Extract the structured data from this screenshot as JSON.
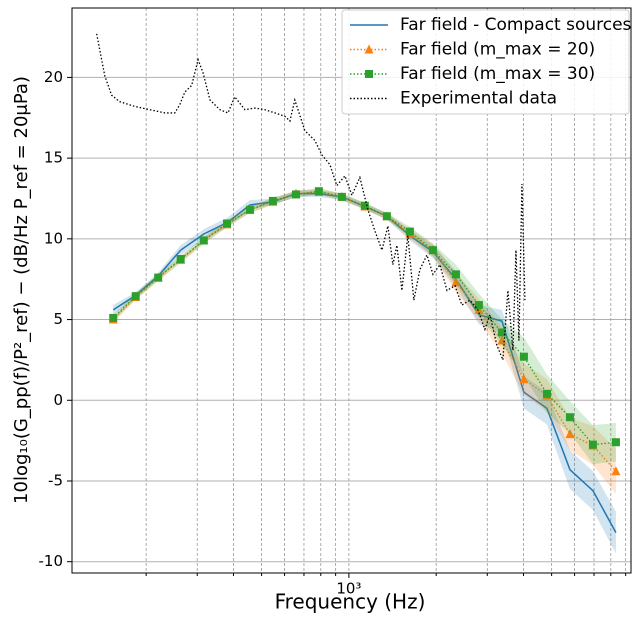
{
  "chart_data": {
    "type": "line",
    "xlabel": "Frequency (Hz)",
    "ylabel": "10log₁₀(G_pp(f)/P²_ref) − (dB/Hz     P_ref = 20μPa)",
    "xscale": "log",
    "xlim": [
      111,
      9390
    ],
    "ylim": [
      -10.7,
      24.3
    ],
    "xticks": [
      {
        "value": 1000,
        "label": "10³"
      }
    ],
    "x_minor_ticks": [
      200,
      300,
      400,
      500,
      600,
      700,
      800,
      900,
      2000,
      3000,
      4000,
      5000,
      6000,
      7000,
      8000,
      9000
    ],
    "yticks": [
      -10,
      -5,
      0,
      5,
      10,
      15,
      20
    ],
    "grid": true,
    "legend": "upper right",
    "series": [
      {
        "name": "Far field - Compact sources",
        "color": "#1f77b4",
        "linestyle": "solid",
        "marker": "none",
        "x": [
          154,
          184,
          220,
          263,
          316,
          380,
          456,
          547,
          657,
          788,
          946,
          1135,
          1352,
          1623,
          1949,
          2339,
          2807,
          3370,
          4013,
          4818,
          5783,
          6941,
          8331
        ],
        "values": [
          5.6,
          6.5,
          7.7,
          9.3,
          10.3,
          11.0,
          12.1,
          12.3,
          12.8,
          12.8,
          12.6,
          12.0,
          11.4,
          10.2,
          9.2,
          7.5,
          5.3,
          4.9,
          0.5,
          -0.5,
          -4.3,
          -5.6,
          -8.2
        ],
        "error": [
          0.3,
          0.2,
          0.2,
          0.3,
          0.3,
          0.3,
          0.3,
          0.2,
          0.2,
          0.2,
          0.2,
          0.2,
          0.2,
          0.3,
          0.4,
          0.5,
          0.6,
          0.7,
          1.0,
          1.0,
          1.2,
          1.2,
          1.3
        ]
      },
      {
        "name": "Far field (m_max = 20)",
        "color": "#ff7f0e",
        "linestyle": "dotted",
        "marker": "triangle",
        "x": [
          154,
          184,
          220,
          263,
          316,
          380,
          456,
          547,
          657,
          788,
          946,
          1135,
          1352,
          1623,
          1949,
          2339,
          2807,
          3370,
          4013,
          4818,
          5783,
          6941,
          8331
        ],
        "values": [
          5.0,
          6.4,
          7.6,
          8.7,
          9.9,
          10.9,
          11.8,
          12.3,
          12.8,
          12.9,
          12.6,
          12.0,
          11.4,
          10.3,
          9.3,
          7.3,
          5.6,
          3.7,
          1.3,
          0.3,
          -2.1,
          -2.8,
          -4.4
        ],
        "error": [
          0.2,
          0.2,
          0.2,
          0.2,
          0.2,
          0.2,
          0.2,
          0.2,
          0.2,
          0.2,
          0.2,
          0.2,
          0.2,
          0.3,
          0.4,
          0.6,
          0.7,
          0.8,
          1.0,
          1.0,
          1.0,
          1.2,
          1.4
        ]
      },
      {
        "name": "Far field (m_max = 30)",
        "color": "#2ca02c",
        "linestyle": "dotted",
        "marker": "square",
        "x": [
          154,
          184,
          220,
          263,
          316,
          380,
          456,
          547,
          657,
          788,
          946,
          1135,
          1352,
          1623,
          1949,
          2339,
          2807,
          3370,
          4013,
          4818,
          5783,
          6941,
          8331
        ],
        "values": [
          5.1,
          6.45,
          7.6,
          8.75,
          9.9,
          10.95,
          11.8,
          12.35,
          12.75,
          12.95,
          12.6,
          12.05,
          11.4,
          10.45,
          9.3,
          7.8,
          5.9,
          4.2,
          2.7,
          0.4,
          -1.05,
          -2.75,
          -2.6
        ],
        "error": [
          0.2,
          0.2,
          0.2,
          0.2,
          0.2,
          0.2,
          0.2,
          0.2,
          0.2,
          0.2,
          0.2,
          0.2,
          0.2,
          0.3,
          0.4,
          0.6,
          0.7,
          0.8,
          1.2,
          1.2,
          1.0,
          1.2,
          1.2
        ]
      },
      {
        "name": "Experimental data",
        "color": "#000000",
        "linestyle": "dotted",
        "marker": "none",
        "x": [
          135,
          144,
          152,
          162,
          183,
          206,
          232,
          251,
          261,
          272,
          287,
          302,
          314,
          332,
          359,
          383,
          404,
          438,
          474,
          513,
          556,
          601,
          626,
          651,
          705,
          763,
          807,
          860,
          909,
          969,
          1024,
          1091,
          1163,
          1229,
          1300,
          1363,
          1418,
          1464,
          1523,
          1597,
          1675,
          1757,
          1858,
          1949,
          2060,
          2178,
          2321,
          2453,
          2614,
          2786,
          2944,
          3064,
          3238,
          3396,
          3534,
          3677,
          3767,
          3857,
          3951,
          4045
        ],
        "values": [
          22.7,
          20.1,
          18.9,
          18.5,
          18.2,
          18.0,
          17.8,
          17.8,
          18.3,
          19.1,
          19.5,
          21.1,
          20.3,
          18.6,
          18.0,
          17.8,
          18.8,
          18.0,
          18.1,
          18.0,
          17.8,
          17.6,
          17.3,
          18.6,
          16.7,
          16.1,
          15.2,
          14.6,
          13.3,
          13.9,
          12.7,
          13.8,
          11.8,
          10.5,
          9.3,
          10.8,
          8.4,
          9.6,
          6.8,
          10.2,
          6.2,
          8.1,
          9.0,
          7.8,
          8.4,
          6.8,
          7.1,
          5.9,
          6.2,
          5.6,
          4.4,
          5.3,
          3.4,
          2.5,
          6.8,
          3.1,
          9.3,
          3.7,
          13.4,
          6.2
        ]
      }
    ]
  }
}
